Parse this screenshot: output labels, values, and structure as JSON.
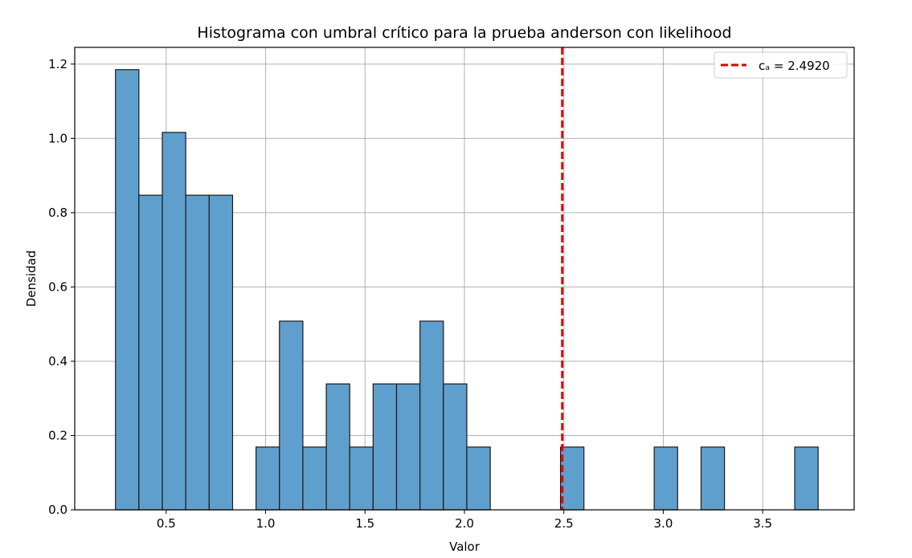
{
  "chart_data": {
    "type": "bar",
    "title": "Histograma con umbral crítico para la prueba anderson con  likelihood",
    "xlabel": "Valor",
    "ylabel": "Densidad",
    "xlim": [
      0.04,
      3.96
    ],
    "ylim": [
      0,
      1.245
    ],
    "xticks": [
      0.5,
      1.0,
      1.5,
      2.0,
      2.5,
      3.0,
      3.5
    ],
    "xtick_labels": [
      "0.5",
      "1.0",
      "1.5",
      "2.0",
      "2.5",
      "3.0",
      "3.5"
    ],
    "yticks": [
      0,
      0.2,
      0.4,
      0.6,
      0.8,
      1.0,
      1.2
    ],
    "ytick_labels": [
      "0.0",
      "0.2",
      "0.4",
      "0.6",
      "0.8",
      "1.0",
      "1.2"
    ],
    "grid": true,
    "bar_color": "#5f9fcd",
    "bar_edge_color": "#1a1a1a",
    "bin_edges": [
      0.245,
      0.3628,
      0.4806,
      0.5984,
      0.7162,
      0.834,
      0.9518,
      1.0696,
      1.1874,
      1.3052,
      1.423,
      1.5408,
      1.6586,
      1.7764,
      1.8942,
      2.012,
      2.1298,
      2.2476,
      2.3654,
      2.4832,
      2.601,
      2.7188,
      2.8366,
      2.9544,
      3.0722,
      3.19,
      3.3078,
      3.4256,
      3.5434,
      3.6612,
      3.779
    ],
    "values": [
      1.185,
      0.847,
      1.016,
      0.847,
      0.847,
      0,
      0.169,
      0.508,
      0.169,
      0.339,
      0.169,
      0.339,
      0.339,
      0.508,
      0.339,
      0.169,
      0,
      0,
      0,
      0.169,
      0,
      0,
      0,
      0.169,
      0,
      0.169,
      0,
      0,
      0,
      0.169
    ],
    "threshold": {
      "value": 2.492,
      "color": "#e00000",
      "style": "dashed"
    },
    "legend": {
      "placement": "top-right",
      "label": "cₐ = 2.4920"
    }
  }
}
